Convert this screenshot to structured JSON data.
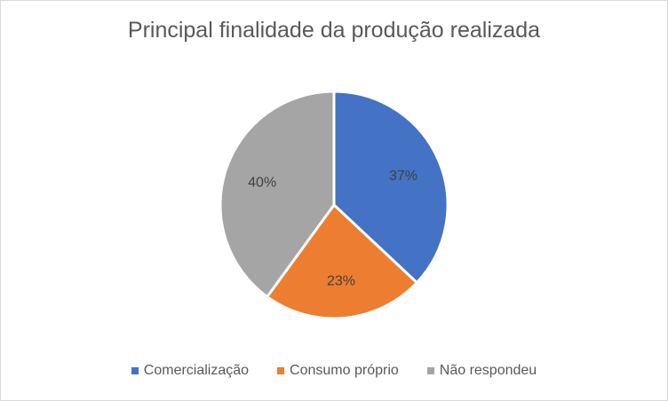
{
  "chart_data": {
    "type": "pie",
    "title": "Principal finalidade da produção realizada",
    "categories": [
      "Comercialização",
      "Consumo próprio",
      "Não respondeu"
    ],
    "values": [
      37,
      23,
      40
    ],
    "labels": [
      "37%",
      "23%",
      "40%"
    ],
    "colors": [
      "#4472c4",
      "#ed7d31",
      "#a5a5a5"
    ],
    "legend_position": "bottom"
  }
}
